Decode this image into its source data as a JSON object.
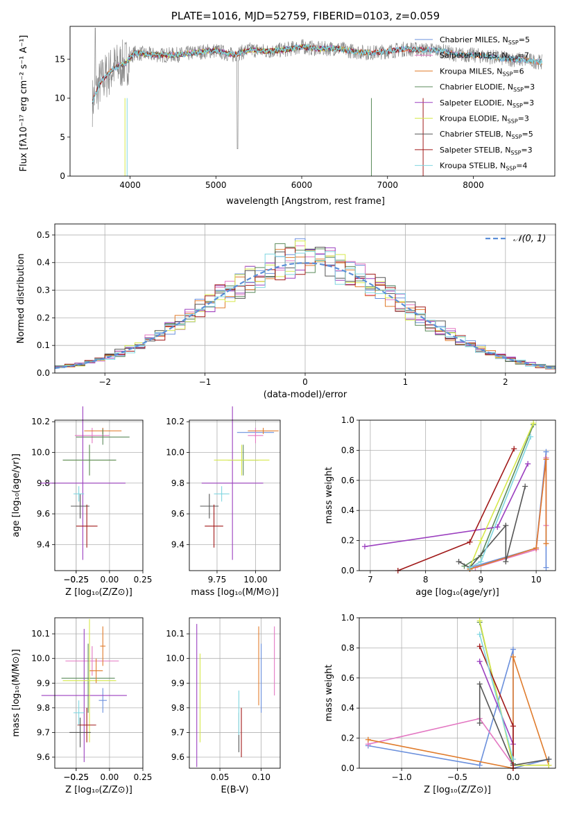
{
  "colors": {
    "chabrier_miles": "#6a8fdc",
    "salpeter_miles": "#e377c2",
    "kroupa_miles": "#e07b2b",
    "chabrier_elodie": "#5a8a5a",
    "salpeter_elodie": "#9b3fbf",
    "kroupa_elodie": "#d6e84a",
    "chabrier_stelib": "#555555",
    "salpeter_stelib": "#a01818",
    "kroupa_stelib": "#7fd6e0",
    "data": "#888888",
    "normal": "#5b8fd8"
  },
  "chart_data": [
    {
      "id": "spectrum",
      "type": "line",
      "title": "PLATE=1016, MJD=52759, FIBERID=0103, z=0.059",
      "xlabel": "wavelength [Angstrom, rest frame]",
      "ylabel": "Flux [fλ10⁻¹⁷ erg cm⁻² s⁻¹ A⁻¹]",
      "xlim": [
        3300,
        8950
      ],
      "ylim": [
        0,
        19.2
      ],
      "xticks": [
        "4000",
        "5000",
        "6000",
        "7000",
        "8000"
      ],
      "yticks": [
        "0",
        "5",
        "10",
        "15"
      ],
      "legend": [
        "Chabrier MILES, N_SSP=5",
        "Salpeter MILES, N_SSP=7",
        "Kroupa MILES, N_SSP=6",
        "Chabrier ELODIE, N_SSP=3",
        "Salpeter ELODIE, N_SSP=3",
        "Kroupa ELODIE, N_SSP=3",
        "Chabrier STELIB, N_SSP=5",
        "Salpeter STELIB, N_SSP=3",
        "Kroupa STELIB, N_SSP=4"
      ],
      "continuum": {
        "x": [
          3560,
          3650,
          3800,
          3950,
          4050,
          4200,
          4400,
          4600,
          4800,
          5000,
          5200,
          5400,
          5600,
          5800,
          6000,
          6200,
          6400,
          6600,
          6800,
          7000,
          7200,
          7400,
          7600,
          7800,
          8000,
          8200,
          8400,
          8600,
          8800
        ],
        "y": [
          9.5,
          12.0,
          13.8,
          14.5,
          15.8,
          15.6,
          15.5,
          15.6,
          15.9,
          16.1,
          15.5,
          16.2,
          16.0,
          16.2,
          16.6,
          16.3,
          16.4,
          16.0,
          15.8,
          16.0,
          16.3,
          16.2,
          16.1,
          15.6,
          15.5,
          15.3,
          15.0,
          14.9,
          14.6
        ]
      }
    },
    {
      "id": "residuals",
      "type": "histogram",
      "xlabel": "(data-model)/error",
      "ylabel": "Normed distribution",
      "xlim": [
        -2.5,
        2.5
      ],
      "ylim": [
        0,
        0.54
      ],
      "xticks": [
        "−2",
        "−1",
        "0",
        "1",
        "2"
      ],
      "yticks": [
        "0.0",
        "0.1",
        "0.2",
        "0.3",
        "0.4",
        "0.5"
      ],
      "legend": [
        "𝒩(0, 1)"
      ],
      "bin_width": 0.1
    },
    {
      "id": "age-vs-Z",
      "type": "errorbar",
      "xlabel": "Z [log₁₀(Z/Z⊙)]",
      "ylabel": "age  [log₁₀(age/yr)]",
      "xlim": [
        -0.41,
        0.25
      ],
      "ylim": [
        9.23,
        10.21
      ],
      "xticks": [
        "−0.25",
        "−0.25",
        "0.00",
        "0.25"
      ],
      "yticks": [
        "9.4",
        "9.6",
        "9.8",
        "10.0",
        "10.2"
      ],
      "points": [
        {
          "x": -0.05,
          "xerr": 0.05,
          "y": 10.14,
          "yerr": 0.02,
          "c": "chabrier_miles"
        },
        {
          "x": -0.13,
          "xerr": 0.13,
          "y": 10.11,
          "yerr": 0.05,
          "c": "salpeter_miles"
        },
        {
          "x": -0.05,
          "xerr": 0.14,
          "y": 10.14,
          "yerr": 0.02,
          "c": "kroupa_miles"
        },
        {
          "x": -0.05,
          "xerr": 0.2,
          "y": 10.1,
          "yerr": 0.05,
          "c": "chabrier_elodie"
        },
        {
          "x": -0.2,
          "xerr": 0.32,
          "y": 9.8,
          "yerr": 0.5,
          "c": "salpeter_elodie"
        },
        {
          "x": -0.15,
          "xerr": 0.2,
          "y": 9.95,
          "yerr": 0.1,
          "c": "kroupa_elodie"
        },
        {
          "x": -0.22,
          "xerr": 0.07,
          "y": 9.65,
          "yerr": 0.08,
          "c": "chabrier_stelib"
        },
        {
          "x": -0.17,
          "xerr": 0.08,
          "y": 9.52,
          "yerr": 0.14,
          "c": "salpeter_stelib"
        },
        {
          "x": -0.23,
          "xerr": 0.04,
          "y": 9.73,
          "yerr": 0.05,
          "c": "kroupa_stelib"
        },
        {
          "x": -0.15,
          "xerr": 0.2,
          "y": 9.95,
          "yerr": 0.1,
          "c": "chabrier_elodie"
        }
      ]
    },
    {
      "id": "age-vs-mass",
      "type": "errorbar",
      "xlabel": "mass [log₁₀(M/M⊙)]",
      "ylabel": "",
      "xlim": [
        9.57,
        10.16
      ],
      "ylim": [
        9.23,
        10.21
      ],
      "xticks": [
        "9.75",
        "10.00"
      ],
      "yticks": [
        "9.4",
        "9.6",
        "9.8",
        "10.0",
        "10.2"
      ],
      "points": [
        {
          "x": 10.0,
          "xerr": 0.12,
          "y": 10.13,
          "yerr": 0.03,
          "c": "chabrier_miles"
        },
        {
          "x": 10.0,
          "xerr": 0.05,
          "y": 10.11,
          "yerr": 0.05,
          "c": "salpeter_miles"
        },
        {
          "x": 10.05,
          "xerr": 0.1,
          "y": 10.14,
          "yerr": 0.02,
          "c": "kroupa_miles"
        },
        {
          "x": 9.92,
          "xerr": 0.1,
          "y": 9.95,
          "yerr": 0.1,
          "c": "chabrier_elodie"
        },
        {
          "x": 9.85,
          "xerr": 0.2,
          "y": 9.8,
          "yerr": 0.5,
          "c": "salpeter_elodie"
        },
        {
          "x": 9.91,
          "xerr": 0.18,
          "y": 9.95,
          "yerr": 0.1,
          "c": "kroupa_elodie"
        },
        {
          "x": 9.7,
          "xerr": 0.06,
          "y": 9.65,
          "yerr": 0.08,
          "c": "chabrier_stelib"
        },
        {
          "x": 9.73,
          "xerr": 0.06,
          "y": 9.52,
          "yerr": 0.14,
          "c": "salpeter_stelib"
        },
        {
          "x": 9.78,
          "xerr": 0.05,
          "y": 9.73,
          "yerr": 0.05,
          "c": "kroupa_stelib"
        }
      ]
    },
    {
      "id": "weight-vs-age",
      "type": "line",
      "xlabel": "age  [log₁₀(age/yr)]",
      "ylabel": "mass weight",
      "xlim": [
        6.8,
        10.35
      ],
      "ylim": [
        0,
        1.0
      ],
      "xticks": [
        "7",
        "8",
        "9",
        "10"
      ],
      "yticks": [
        "0.0",
        "0.2",
        "0.4",
        "0.6",
        "0.8",
        "1.0"
      ],
      "series": [
        {
          "c": "chabrier_miles",
          "x": [
            8.8,
            10.0,
            10.18,
            10.18
          ],
          "y": [
            0.02,
            0.15,
            0.79,
            0.02
          ]
        },
        {
          "c": "salpeter_miles",
          "x": [
            8.9,
            10.0,
            10.18,
            10.18
          ],
          "y": [
            0.02,
            0.14,
            0.75,
            0.3
          ]
        },
        {
          "c": "kroupa_miles",
          "x": [
            8.8,
            10.0,
            10.18,
            10.18
          ],
          "y": [
            0.01,
            0.15,
            0.74,
            0.18
          ]
        },
        {
          "c": "chabrier_elodie",
          "x": [
            8.7,
            9.0,
            9.95
          ],
          "y": [
            0.03,
            0.1,
            0.97
          ]
        },
        {
          "c": "salpeter_elodie",
          "x": [
            6.9,
            9.3,
            9.85
          ],
          "y": [
            0.16,
            0.29,
            0.71
          ]
        },
        {
          "c": "kroupa_elodie",
          "x": [
            8.8,
            9.0,
            9.95
          ],
          "y": [
            0.02,
            0.2,
            0.98
          ]
        },
        {
          "c": "chabrier_stelib",
          "x": [
            8.6,
            8.8,
            9.45,
            9.45,
            9.8
          ],
          "y": [
            0.06,
            0.02,
            0.3,
            0.06,
            0.56
          ]
        },
        {
          "c": "salpeter_stelib",
          "x": [
            7.5,
            8.8,
            9.6
          ],
          "y": [
            0.0,
            0.19,
            0.81
          ]
        },
        {
          "c": "kroupa_stelib",
          "x": [
            8.8,
            9.0,
            9.9
          ],
          "y": [
            0.02,
            0.06,
            0.89
          ]
        }
      ]
    },
    {
      "id": "mass-vs-Z",
      "type": "errorbar",
      "xlabel": "Z [log₁₀(Z/Z⊙)]",
      "ylabel": "mass [log₁₀(M/M⊙)]",
      "xlim": [
        -0.41,
        0.25
      ],
      "ylim": [
        9.555,
        10.165
      ],
      "xticks": [
        "−0.25",
        "−0.25",
        "0.00",
        "0.25"
      ],
      "yticks": [
        "9.6",
        "9.7",
        "9.8",
        "9.9",
        "10.0",
        "10.1"
      ],
      "points": [
        {
          "x": -0.05,
          "xerr": 0.03,
          "y": 9.83,
          "yerr": 0.05,
          "c": "chabrier_miles"
        },
        {
          "x": -0.13,
          "xerr": 0.2,
          "y": 9.99,
          "yerr": 0.06,
          "c": "salpeter_miles"
        },
        {
          "x": -0.05,
          "xerr": 0.02,
          "y": 10.05,
          "yerr": 0.08,
          "c": "kroupa_miles"
        },
        {
          "x": -0.16,
          "xerr": 0.2,
          "y": 9.92,
          "yerr": 0.14,
          "c": "chabrier_elodie"
        },
        {
          "x": -0.19,
          "xerr": 0.32,
          "y": 9.85,
          "yerr": 0.27,
          "c": "salpeter_elodie"
        },
        {
          "x": -0.15,
          "xerr": 0.2,
          "y": 9.91,
          "yerr": 0.25,
          "c": "kroupa_elodie"
        },
        {
          "x": -0.22,
          "xerr": 0.08,
          "y": 9.7,
          "yerr": 0.06,
          "c": "chabrier_stelib"
        },
        {
          "x": -0.17,
          "xerr": 0.07,
          "y": 9.73,
          "yerr": 0.07,
          "c": "salpeter_stelib"
        },
        {
          "x": -0.23,
          "xerr": 0.04,
          "y": 9.78,
          "yerr": 0.05,
          "c": "kroupa_stelib"
        },
        {
          "x": -0.1,
          "xerr": 0.05,
          "y": 9.95,
          "yerr": 0.05,
          "c": "kroupa_miles"
        }
      ]
    },
    {
      "id": "mass-vs-ebv",
      "type": "errorbar",
      "xlabel": "E(B-V)",
      "ylabel": "",
      "xlim": [
        0.013,
        0.123
      ],
      "ylim": [
        9.555,
        10.165
      ],
      "xticks": [
        "0.05",
        "0.10"
      ],
      "yticks": [
        "9.6",
        "9.7",
        "9.8",
        "9.9",
        "10.0",
        "10.1"
      ],
      "points": [
        {
          "x": 0.1,
          "xerr": 0,
          "y": 9.92,
          "yerr": 0.14,
          "c": "chabrier_miles"
        },
        {
          "x": 0.116,
          "xerr": 0,
          "y": 9.99,
          "yerr": 0.14,
          "c": "salpeter_miles"
        },
        {
          "x": 0.097,
          "xerr": 0,
          "y": 9.97,
          "yerr": 0.16,
          "c": "kroupa_miles"
        },
        {
          "x": 0.022,
          "xerr": 0,
          "y": 9.85,
          "yerr": 0.29,
          "c": "salpeter_elodie"
        },
        {
          "x": 0.026,
          "xerr": 0,
          "y": 9.84,
          "yerr": 0.18,
          "c": "kroupa_elodie"
        },
        {
          "x": 0.073,
          "xerr": 0,
          "y": 9.7,
          "yerr": 0.08,
          "c": "chabrier_stelib"
        },
        {
          "x": 0.076,
          "xerr": 0,
          "y": 9.7,
          "yerr": 0.1,
          "c": "salpeter_stelib"
        },
        {
          "x": 0.073,
          "xerr": 0,
          "y": 9.78,
          "yerr": 0.09,
          "c": "kroupa_stelib"
        }
      ]
    },
    {
      "id": "weight-vs-Z",
      "type": "line",
      "xlabel": "Z [log₁₀(Z/Z⊙)]",
      "ylabel": "mass weight",
      "xlim": [
        -1.38,
        0.38
      ],
      "ylim": [
        0,
        1.0
      ],
      "xticks": [
        "−1.0",
        "−0.5",
        "0.0"
      ],
      "yticks": [
        "0.0",
        "0.2",
        "0.4",
        "0.6",
        "0.8",
        "1.0"
      ],
      "series": [
        {
          "c": "chabrier_miles",
          "x": [
            -1.3,
            -0.3,
            0.0,
            0.0,
            0.32
          ],
          "y": [
            0.15,
            0.02,
            0.79,
            0.0,
            0.06
          ]
        },
        {
          "c": "salpeter_miles",
          "x": [
            -1.3,
            -0.3,
            0.0,
            0.32
          ],
          "y": [
            0.16,
            0.33,
            0.02,
            0.02
          ]
        },
        {
          "c": "kroupa_miles",
          "x": [
            -1.3,
            0.0,
            0.0,
            0.32
          ],
          "y": [
            0.19,
            0.0,
            0.74,
            0.02
          ]
        },
        {
          "c": "chabrier_elodie",
          "x": [
            -0.3,
            0.0
          ],
          "y": [
            0.97,
            0.03
          ]
        },
        {
          "c": "salpeter_elodie",
          "x": [
            -0.3,
            0.0
          ],
          "y": [
            0.71,
            0.16
          ]
        },
        {
          "c": "kroupa_elodie",
          "x": [
            -0.3,
            0.0,
            0.32
          ],
          "y": [
            0.98,
            0.02,
            0.02
          ]
        },
        {
          "c": "chabrier_stelib",
          "x": [
            -0.3,
            -0.3,
            0.0,
            0.32
          ],
          "y": [
            0.3,
            0.56,
            0.02,
            0.06
          ]
        },
        {
          "c": "salpeter_stelib",
          "x": [
            -0.3,
            0.0,
            0.0
          ],
          "y": [
            0.81,
            0.28,
            0.0
          ]
        },
        {
          "c": "kroupa_stelib",
          "x": [
            -0.3,
            0.0
          ],
          "y": [
            0.89,
            0.06
          ]
        }
      ]
    }
  ]
}
